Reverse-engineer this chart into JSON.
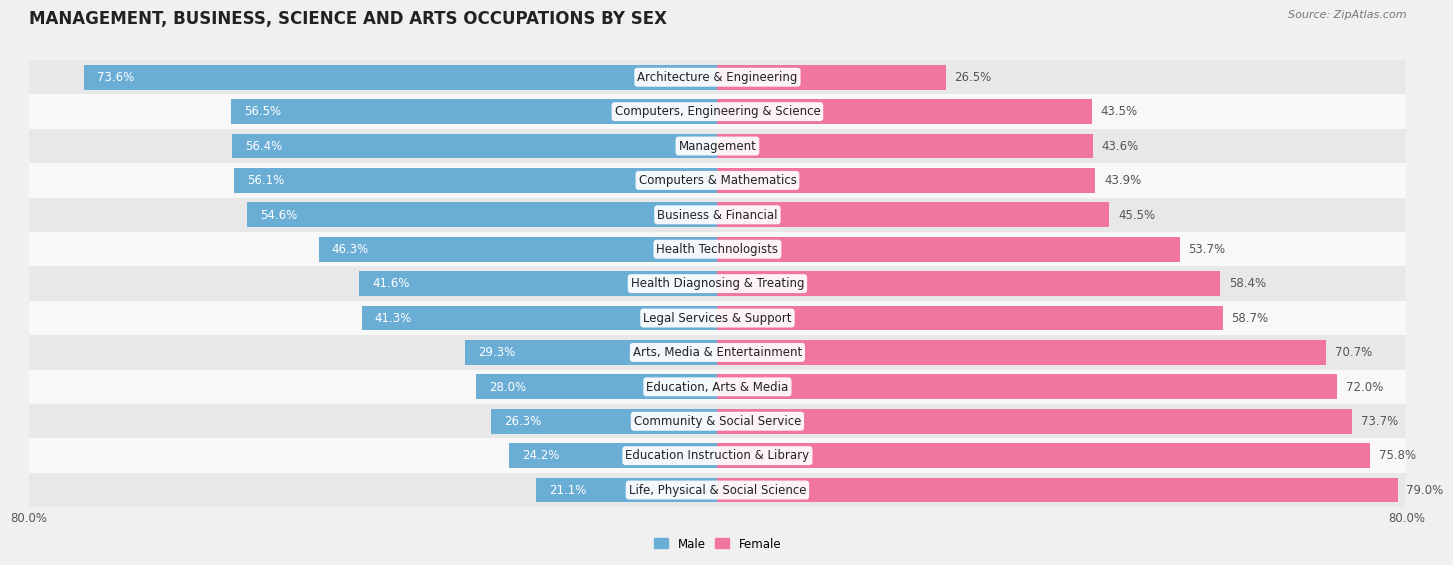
{
  "title": "MANAGEMENT, BUSINESS, SCIENCE AND ARTS OCCUPATIONS BY SEX",
  "source": "Source: ZipAtlas.com",
  "categories": [
    "Architecture & Engineering",
    "Computers, Engineering & Science",
    "Management",
    "Computers & Mathematics",
    "Business & Financial",
    "Health Technologists",
    "Health Diagnosing & Treating",
    "Legal Services & Support",
    "Arts, Media & Entertainment",
    "Education, Arts & Media",
    "Community & Social Service",
    "Education Instruction & Library",
    "Life, Physical & Social Science"
  ],
  "male_pct": [
    73.6,
    56.5,
    56.4,
    56.1,
    54.6,
    46.3,
    41.6,
    41.3,
    29.3,
    28.0,
    26.3,
    24.2,
    21.1
  ],
  "female_pct": [
    26.5,
    43.5,
    43.6,
    43.9,
    45.5,
    53.7,
    58.4,
    58.7,
    70.7,
    72.0,
    73.7,
    75.8,
    79.0
  ],
  "male_color": "#6aaed6",
  "female_color": "#f075a0",
  "row_colors": [
    "#e8e8e8",
    "#f8f8f8"
  ],
  "bg_color": "#f0f0f0",
  "xlim": 80.0,
  "bar_height": 0.72,
  "label_fontsize": 8.5,
  "title_fontsize": 12,
  "source_fontsize": 8,
  "cat_fontsize": 8.5,
  "axis_label_fontsize": 8.5
}
